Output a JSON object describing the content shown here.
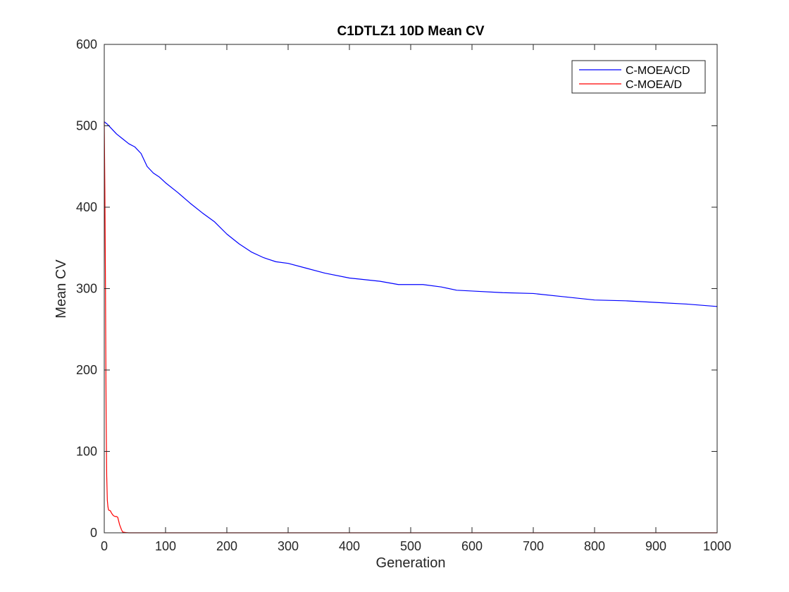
{
  "chart_data": {
    "type": "line",
    "title": "C1DTLZ1 10D Mean CV",
    "xlabel": "Generation",
    "ylabel": "Mean CV",
    "xlim": [
      0,
      1000
    ],
    "ylim": [
      0,
      600
    ],
    "xticks": [
      0,
      100,
      200,
      300,
      400,
      500,
      600,
      700,
      800,
      900,
      1000
    ],
    "yticks": [
      0,
      100,
      200,
      300,
      400,
      500,
      600
    ],
    "grid": false,
    "legend_position": "top-right",
    "series": [
      {
        "name": "C-MOEA/CD",
        "color": "#0000ff",
        "x": [
          0,
          5,
          10,
          20,
          30,
          40,
          50,
          60,
          70,
          80,
          90,
          100,
          120,
          140,
          160,
          180,
          200,
          220,
          240,
          260,
          280,
          300,
          330,
          360,
          400,
          450,
          480,
          520,
          550,
          575,
          600,
          650,
          700,
          750,
          800,
          850,
          900,
          950,
          1000
        ],
        "y": [
          505,
          502,
          498,
          490,
          484,
          478,
          474,
          466,
          450,
          442,
          437,
          430,
          418,
          405,
          393,
          382,
          367,
          355,
          345,
          338,
          333,
          331,
          325,
          319,
          313,
          309,
          305,
          305,
          302,
          298,
          297,
          295,
          294,
          290,
          286,
          285,
          283,
          281,
          278
        ]
      },
      {
        "name": "C-MOEA/D",
        "color": "#ff0000",
        "x": [
          0,
          1,
          2,
          3,
          4,
          5,
          6,
          7,
          10,
          12,
          15,
          18,
          20,
          22,
          25,
          28,
          30,
          35,
          40,
          50,
          100,
          200,
          500,
          1000
        ],
        "y": [
          505,
          420,
          300,
          150,
          70,
          40,
          32,
          28,
          27,
          24,
          21,
          20,
          20,
          19,
          10,
          4,
          1,
          0.3,
          0,
          0,
          0,
          0,
          0,
          0
        ]
      }
    ]
  }
}
